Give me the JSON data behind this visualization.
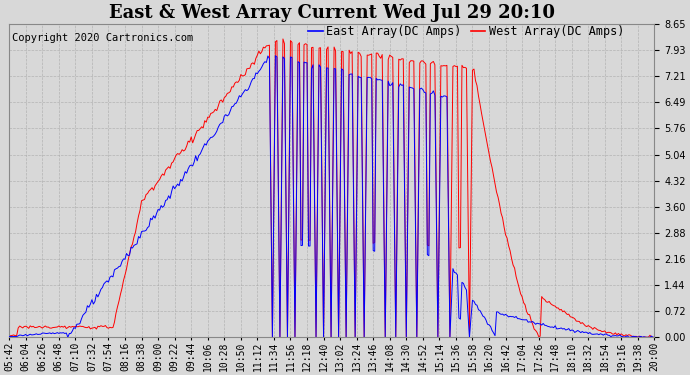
{
  "title": "East & West Array Current Wed Jul 29 20:10",
  "copyright": "Copyright 2020 Cartronics.com",
  "legend_east": "East Array(DC Amps)",
  "legend_west": "West Array(DC Amps)",
  "color_east": "blue",
  "color_west": "red",
  "yticks": [
    0.0,
    0.72,
    1.44,
    2.16,
    2.88,
    3.6,
    4.32,
    5.04,
    5.76,
    6.49,
    7.21,
    7.93,
    8.65
  ],
  "ylim": [
    0.0,
    8.65
  ],
  "background_color": "#d8d8d8",
  "grid_color": "#aaaaaa",
  "xtick_labels": [
    "05:42",
    "06:04",
    "06:26",
    "06:48",
    "07:10",
    "07:32",
    "07:54",
    "08:16",
    "08:38",
    "09:00",
    "09:22",
    "09:44",
    "10:06",
    "10:28",
    "10:50",
    "11:12",
    "11:34",
    "11:56",
    "12:18",
    "12:40",
    "13:02",
    "13:24",
    "13:46",
    "14:08",
    "14:30",
    "14:52",
    "15:14",
    "15:36",
    "15:58",
    "16:20",
    "16:42",
    "17:04",
    "17:26",
    "17:48",
    "18:10",
    "18:32",
    "18:54",
    "19:16",
    "19:38",
    "20:00"
  ],
  "title_fontsize": 13,
  "tick_fontsize": 7,
  "legend_fontsize": 8.5,
  "copyright_fontsize": 7.5
}
